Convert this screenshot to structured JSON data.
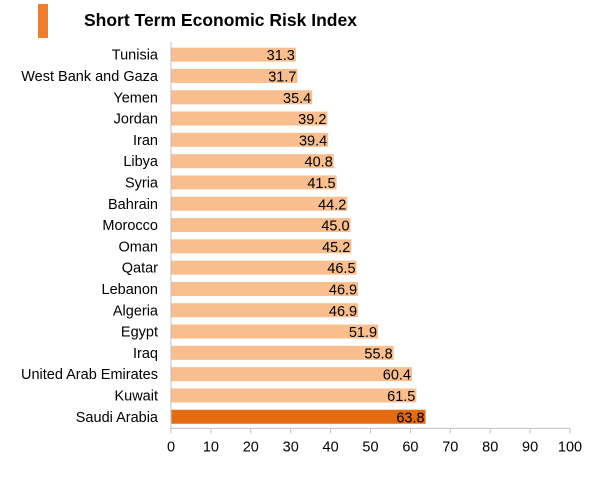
{
  "chart_data": {
    "type": "bar",
    "orientation": "horizontal",
    "title": "Short Term Economic Risk Index",
    "categories": [
      "Tunisia",
      "West Bank and Gaza",
      "Yemen",
      "Jordan",
      "Iran",
      "Libya",
      "Syria",
      "Bahrain",
      "Morocco",
      "Oman",
      "Qatar",
      "Lebanon",
      "Algeria",
      "Egypt",
      "Iraq",
      "United Arab Emirates",
      "Kuwait",
      "Saudi Arabia"
    ],
    "values": [
      31.3,
      31.7,
      35.4,
      39.2,
      39.4,
      40.8,
      41.5,
      44.2,
      45.0,
      45.2,
      46.5,
      46.9,
      46.9,
      51.9,
      55.8,
      60.4,
      61.5,
      63.8
    ],
    "value_labels": [
      "31.3",
      "31.7",
      "35.4",
      "39.2",
      "39.4",
      "40.8",
      "41.5",
      "44.2",
      "45.0",
      "45.2",
      "46.5",
      "46.9",
      "46.9",
      "51.9",
      "55.8",
      "60.4",
      "61.5",
      "63.8"
    ],
    "highlight": "Saudi Arabia",
    "xlim": [
      0,
      100
    ],
    "xticks": [
      "0",
      "10",
      "20",
      "30",
      "40",
      "50",
      "60",
      "70",
      "80",
      "90",
      "100"
    ],
    "grid": false,
    "legend": "none",
    "colors": {
      "bar": "#f9be8e",
      "highlight": "#e56b13",
      "title_accent": "#f07d2e",
      "axis": "#bfbfbf"
    }
  }
}
